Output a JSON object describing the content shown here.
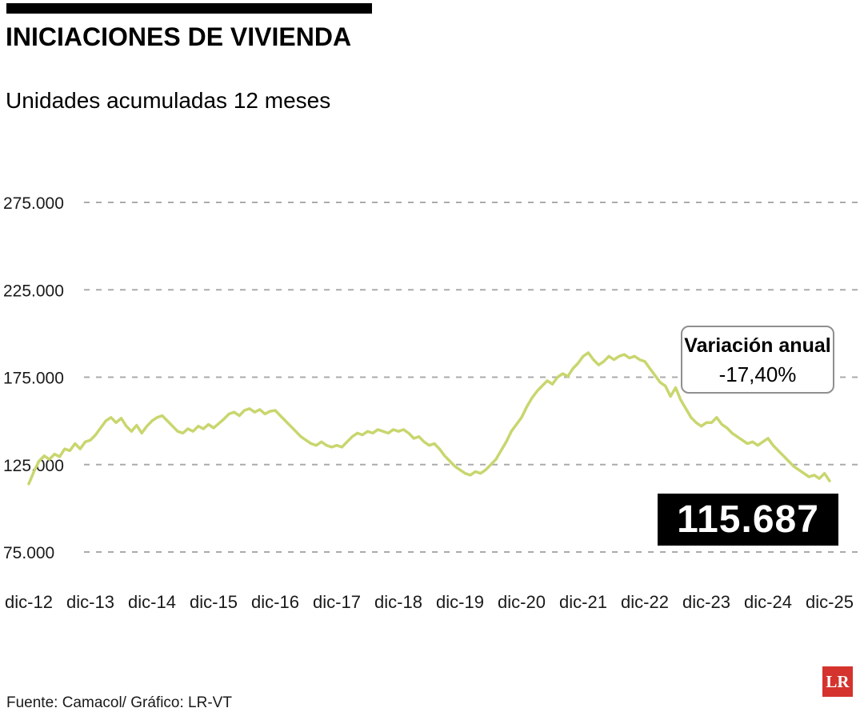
{
  "header": {
    "title": "INICIACIONES DE VIVIENDA",
    "subtitle": "Unidades acumuladas 12 meses"
  },
  "footer": {
    "source": "Fuente: Camacol/ Gráfico: LR-VT",
    "logo": "LR"
  },
  "chart_data": {
    "type": "line",
    "title": "INICIACIONES DE VIVIENDA",
    "subtitle": "Unidades acumuladas 12 meses",
    "frequency": "monthly",
    "x_start": "dic-12",
    "x_end": "dic-25",
    "xtick_labels": [
      "dic-12",
      "dic-13",
      "dic-14",
      "dic-15",
      "dic-16",
      "dic-17",
      "dic-18",
      "dic-19",
      "dic-20",
      "dic-21",
      "dic-22",
      "dic-23",
      "dic-24",
      "dic-25"
    ],
    "ylim": [
      75000,
      275000
    ],
    "yticks": [
      275000,
      225000,
      175000,
      125000,
      75000
    ],
    "ytick_labels": [
      "275.000",
      "225.000",
      "175.000",
      "125.000",
      "75.000"
    ],
    "grid": "dashed horizontal gridlines, no axis lines",
    "legend": "none",
    "line_color": "#c9d66e",
    "values": [
      114000,
      121000,
      127000,
      130000,
      128000,
      131000,
      129500,
      134000,
      133000,
      137000,
      134000,
      138000,
      139000,
      142000,
      146000,
      150000,
      152000,
      149000,
      151500,
      147000,
      144000,
      147500,
      143000,
      147000,
      150000,
      152000,
      153000,
      150000,
      147000,
      144000,
      143000,
      145500,
      144000,
      147000,
      145500,
      148000,
      146000,
      148500,
      151000,
      154000,
      155000,
      153000,
      156000,
      157000,
      155000,
      156500,
      154000,
      155500,
      156000,
      153000,
      150000,
      147000,
      144000,
      141000,
      139000,
      137000,
      136000,
      138000,
      136000,
      135000,
      136000,
      135000,
      138000,
      141000,
      143000,
      142000,
      144000,
      143000,
      145000,
      144000,
      143000,
      145000,
      144000,
      145000,
      143000,
      140000,
      141000,
      138000,
      136000,
      137000,
      134000,
      130000,
      127000,
      124000,
      122000,
      120000,
      119000,
      121000,
      120000,
      122000,
      125000,
      128000,
      133000,
      138000,
      144000,
      148000,
      152000,
      158000,
      163000,
      167000,
      170000,
      173000,
      171000,
      175000,
      177000,
      175500,
      180000,
      183000,
      187000,
      189000,
      185000,
      182000,
      184000,
      187000,
      185000,
      187000,
      188000,
      186000,
      187000,
      185000,
      184000,
      180000,
      176000,
      172000,
      170000,
      164000,
      169000,
      162000,
      157000,
      152000,
      149000,
      147000,
      149000,
      149000,
      152000,
      148000,
      146000,
      143000,
      141000,
      139000,
      137000,
      138000,
      136000,
      138000,
      140057,
      136000,
      133000,
      130000,
      127000,
      124000,
      122000,
      120000,
      118000,
      119000,
      117000,
      120000,
      115687
    ],
    "callout": {
      "title": "Variación anual",
      "value": "-17,40%"
    },
    "last_value": 115687,
    "last_value_label": "115.687",
    "yoy_change_pct": -17.4
  }
}
